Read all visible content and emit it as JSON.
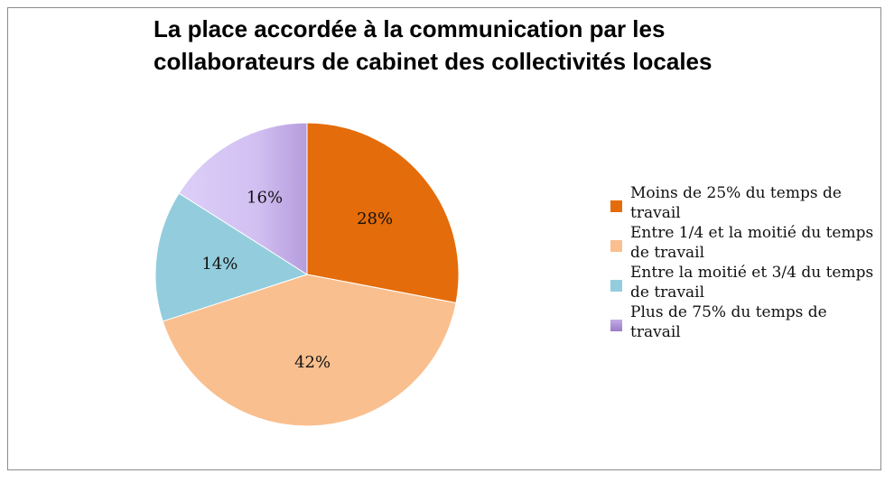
{
  "chart_data": {
    "type": "pie",
    "title": "La place accordée à la communication par les collaborateurs de cabinet des collectivités locales",
    "title_lines": [
      "La place accordée à la communication par les",
      "collaborateurs de cabinet des collectivités locales"
    ],
    "legend_position": "right",
    "slices": [
      {
        "label": "Moins de  25% du temps de travail",
        "value": 28,
        "display": "28%",
        "color": "#E46C0A"
      },
      {
        "label": "Entre 1/4 et la moitié du temps de travail",
        "value": 42,
        "display": "42%",
        "color": "#F9BF8F"
      },
      {
        "label": "Entre la moitié et 3/4 du temps de travail",
        "value": 14,
        "display": "14%",
        "color": "#93CDDD"
      },
      {
        "label": "Plus de 75% du temps de travail",
        "value": 16,
        "display": "16%",
        "color": "#D4C4F2"
      }
    ]
  }
}
